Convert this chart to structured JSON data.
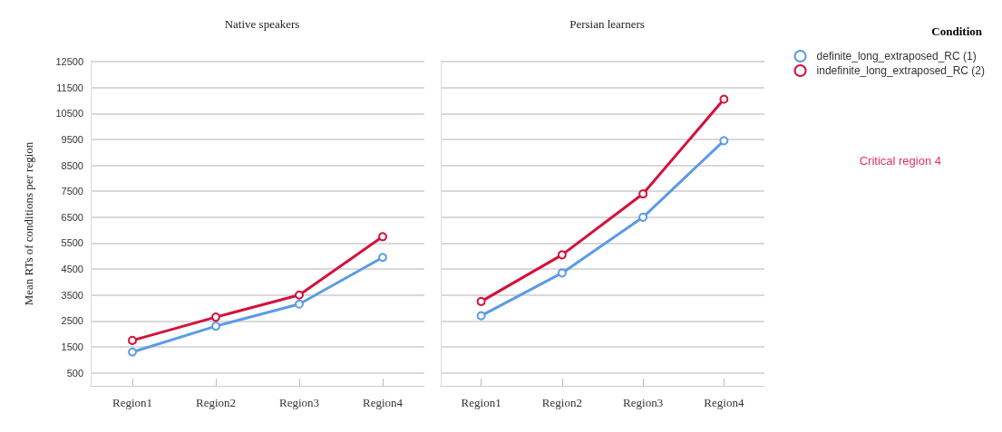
{
  "chart_data": [
    {
      "type": "line",
      "title": "Native speakers",
      "ylabel": "Mean RTs of conditions per region",
      "categories": [
        "Region1",
        "Region2",
        "Region3",
        "Region4"
      ],
      "series": [
        {
          "color": "#5b9be6",
          "values": [
            1300,
            2300,
            3150,
            4950
          ]
        },
        {
          "color": "#d4123c",
          "values": [
            1750,
            2650,
            3500,
            5750
          ]
        }
      ],
      "ylim": [
        0,
        12500
      ],
      "yticks": [
        500,
        1500,
        2500,
        3500,
        4500,
        5500,
        6500,
        7500,
        8500,
        9500,
        10500,
        11500,
        12500
      ],
      "grid": "y",
      "marker": "circle",
      "line_style": "solid"
    },
    {
      "type": "line",
      "title": "Persian learners",
      "categories": [
        "Region1",
        "Region2",
        "Region3",
        "Region4"
      ],
      "series": [
        {
          "name": "definite_long_extraposed_RC (1)",
          "color": "#5b9be6",
          "values": [
            2700,
            4350,
            6500,
            9450
          ]
        },
        {
          "name": "indefinite_long_extraposed_RC (2)",
          "color": "#d4123c",
          "values": [
            3250,
            5050,
            7400,
            11050
          ]
        }
      ],
      "ylim": [
        0,
        12500
      ],
      "yticks": [
        500,
        1500,
        2500,
        3500,
        4500,
        5500,
        6500,
        7500,
        8500,
        9500,
        10500,
        11500,
        12500
      ],
      "grid": "y",
      "marker": "circle",
      "line_style": "solid",
      "tick_labels": "x",
      "legend": "top right",
      "legend_title": "Condition",
      "annotations": [
        "Critical region 4"
      ]
    }
  ]
}
